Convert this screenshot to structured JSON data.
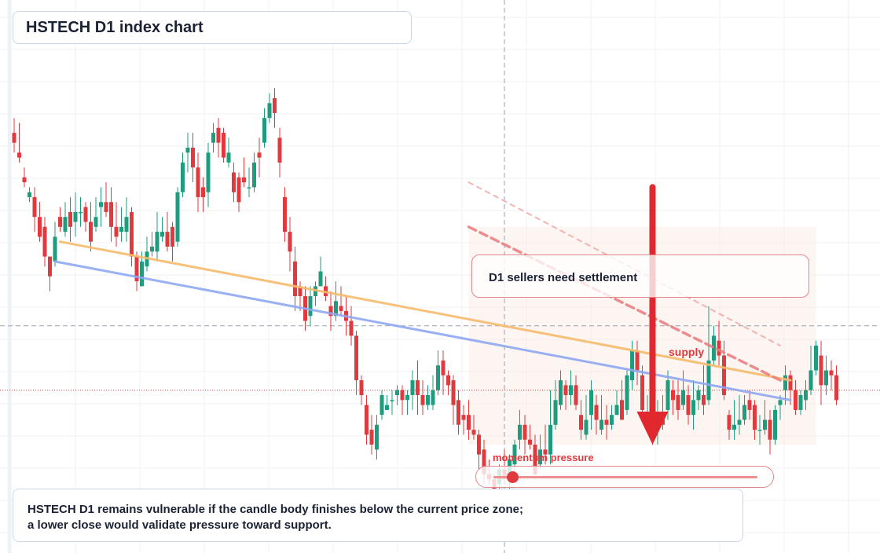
{
  "header": {
    "title": "HSTECH D1 index chart"
  },
  "callout": {
    "text": "D1 sellers need settlement"
  },
  "supply_label": "supply",
  "momentum": {
    "label": "momentum pressure",
    "level": 0.07
  },
  "note": {
    "text": "HSTECH D1 remains vulnerable if the candle body finishes below the current price zone; a lower close would validate pressure toward support."
  },
  "colors": {
    "bullish": "#1f9c7d",
    "bearish": "#e0393e",
    "support_line": "#8fa8f2",
    "resistance_line": "#f7bb6b",
    "bearish_arrow": "#e0282e",
    "price_line": "#e0393e",
    "grid": "#edf0f5",
    "crosshair": "#9aa2ae",
    "panel_border": "#c9d6ea",
    "supply_zone_fill": "#fbe9df"
  },
  "chart_data": {
    "type": "candlestick",
    "title": "HSTECH D1 index chart",
    "timeframe": "D1",
    "symbol": "HSTECH",
    "ylim": [
      0,
      100
    ],
    "xlabel": "",
    "ylabel": "",
    "grid": true,
    "candles": [
      [
        83,
        81,
        86,
        79
      ],
      [
        79,
        78,
        85,
        77
      ],
      [
        74,
        73,
        76,
        72
      ],
      [
        70,
        71,
        72,
        69
      ],
      [
        70,
        66,
        72,
        63
      ],
      [
        66,
        62,
        69,
        61
      ],
      [
        64,
        58,
        66,
        56
      ],
      [
        58,
        54,
        58,
        51
      ],
      [
        57,
        62,
        65,
        56
      ],
      [
        66,
        64,
        68,
        63
      ],
      [
        63,
        66,
        69,
        62
      ],
      [
        67,
        64,
        70,
        61
      ],
      [
        65,
        67,
        71,
        62
      ],
      [
        67,
        67,
        70,
        64
      ],
      [
        68,
        65,
        69,
        63
      ],
      [
        65,
        61,
        69,
        59
      ],
      [
        64,
        66,
        70,
        63
      ],
      [
        68,
        69,
        72,
        64
      ],
      [
        69,
        67,
        73,
        66
      ],
      [
        69,
        64,
        72,
        61
      ],
      [
        64,
        62,
        69,
        60
      ],
      [
        63,
        64,
        68,
        61
      ],
      [
        63,
        66,
        70,
        61
      ],
      [
        67,
        58,
        68,
        56
      ],
      [
        58,
        53,
        59,
        51
      ],
      [
        52,
        57,
        59,
        52
      ],
      [
        56,
        59,
        62,
        55
      ],
      [
        59,
        60,
        63,
        58
      ],
      [
        59,
        63,
        67,
        57
      ],
      [
        62,
        63,
        66,
        61
      ],
      [
        63,
        60,
        67,
        59
      ],
      [
        64,
        60,
        65,
        57
      ],
      [
        61,
        71,
        72,
        60
      ],
      [
        71,
        77,
        79,
        70
      ],
      [
        79,
        80,
        83,
        75
      ],
      [
        80,
        76,
        83,
        73
      ],
      [
        76,
        70,
        79,
        67
      ],
      [
        72,
        70,
        74,
        67
      ],
      [
        71,
        79,
        81,
        68
      ],
      [
        81,
        83,
        85,
        79
      ],
      [
        84,
        81,
        86,
        78
      ],
      [
        83,
        78,
        84,
        77
      ],
      [
        77,
        79,
        82,
        76
      ],
      [
        75,
        71,
        77,
        69
      ],
      [
        74,
        69,
        75,
        67
      ],
      [
        74,
        73,
        78,
        72
      ],
      [
        72,
        72,
        76,
        70
      ],
      [
        72,
        77,
        79,
        71
      ],
      [
        79,
        78,
        82,
        74
      ],
      [
        81,
        86,
        88,
        80
      ],
      [
        86,
        89,
        91,
        85
      ],
      [
        90,
        87,
        92,
        84
      ],
      [
        82,
        77,
        84,
        74
      ],
      [
        70,
        63,
        72,
        61
      ],
      [
        63,
        59,
        66,
        55
      ],
      [
        57,
        50,
        60,
        47
      ],
      [
        52,
        50,
        53,
        47
      ],
      [
        50,
        45,
        52,
        43
      ],
      [
        46,
        50,
        52,
        44
      ],
      [
        50,
        52,
        53,
        48
      ],
      [
        52,
        55,
        58,
        52
      ],
      [
        52,
        50,
        54,
        49
      ],
      [
        48,
        46,
        51,
        43
      ],
      [
        46,
        49,
        53,
        45
      ],
      [
        48,
        47,
        52,
        46
      ],
      [
        47,
        45,
        50,
        42
      ],
      [
        45,
        42,
        48,
        40
      ],
      [
        42,
        33,
        43,
        30
      ],
      [
        33,
        30,
        34,
        28
      ],
      [
        28,
        22,
        30,
        20
      ],
      [
        23,
        20,
        26,
        18
      ],
      [
        19,
        24,
        26,
        17
      ],
      [
        26,
        30,
        31,
        25
      ],
      [
        27,
        28,
        30,
        27
      ],
      [
        29,
        29,
        31,
        26
      ],
      [
        30,
        31,
        32,
        28
      ],
      [
        31,
        29,
        32,
        26
      ],
      [
        29,
        30,
        31,
        26
      ],
      [
        30,
        33,
        35,
        27
      ],
      [
        33,
        30,
        37,
        26
      ],
      [
        30,
        28,
        33,
        26
      ],
      [
        28,
        30,
        32,
        27
      ],
      [
        28,
        31,
        34,
        27
      ],
      [
        31,
        36,
        39,
        30
      ],
      [
        37,
        34,
        39,
        30
      ],
      [
        34,
        32,
        35,
        30
      ],
      [
        33,
        28,
        34,
        24
      ],
      [
        29,
        24,
        31,
        22
      ],
      [
        26,
        25,
        28,
        22
      ],
      [
        26,
        23,
        29,
        21
      ],
      [
        23,
        22,
        26,
        21
      ],
      [
        22,
        18,
        23,
        15
      ],
      [
        19,
        14,
        21,
        12
      ],
      [
        14,
        13,
        17,
        12
      ],
      [
        13,
        11,
        14,
        9
      ],
      [
        12,
        15,
        16,
        11
      ],
      [
        15,
        13,
        19,
        12
      ],
      [
        14,
        17,
        18,
        11
      ],
      [
        16,
        20,
        21,
        14
      ],
      [
        21,
        24,
        27,
        19
      ],
      [
        24,
        21,
        26,
        18
      ],
      [
        21,
        20,
        24,
        19
      ],
      [
        20,
        14,
        22,
        13
      ],
      [
        16,
        19,
        22,
        15
      ],
      [
        19,
        18,
        24,
        16
      ],
      [
        18,
        24,
        31,
        16
      ],
      [
        24,
        29,
        33,
        23
      ],
      [
        28,
        33,
        35,
        27
      ],
      [
        32,
        30,
        33,
        27
      ],
      [
        30,
        32,
        35,
        28
      ],
      [
        32,
        28,
        34,
        27
      ],
      [
        26,
        23,
        29,
        21
      ],
      [
        22,
        25,
        30,
        21
      ],
      [
        26,
        31,
        33,
        23
      ],
      [
        28,
        25,
        30,
        22
      ],
      [
        23,
        25,
        30,
        22
      ],
      [
        25,
        24,
        28,
        21
      ],
      [
        24,
        26,
        28,
        23
      ],
      [
        26,
        28,
        31,
        26
      ],
      [
        29,
        25,
        33,
        25
      ],
      [
        27,
        34,
        35,
        26
      ],
      [
        33,
        39,
        41,
        31
      ],
      [
        39,
        35,
        41,
        32
      ],
      [
        34,
        27,
        36,
        25
      ],
      [
        25,
        25,
        30,
        24
      ],
      [
        25,
        23,
        28,
        20
      ],
      [
        23,
        25,
        29,
        20
      ],
      [
        25,
        24,
        30,
        23
      ],
      [
        27,
        33,
        35,
        25
      ],
      [
        31,
        29,
        33,
        26
      ],
      [
        30,
        27,
        33,
        25
      ],
      [
        28,
        31,
        35,
        27
      ],
      [
        30,
        26,
        32,
        24
      ],
      [
        26,
        29,
        33,
        23
      ],
      [
        29,
        31,
        32,
        27
      ],
      [
        30,
        28,
        36,
        26
      ],
      [
        29,
        37,
        48,
        28
      ],
      [
        37,
        42,
        44,
        36
      ],
      [
        41,
        38,
        45,
        36
      ],
      [
        38,
        30,
        41,
        29
      ],
      [
        26,
        23,
        27,
        21
      ],
      [
        23,
        24,
        29,
        21
      ],
      [
        24,
        25,
        30,
        22
      ],
      [
        25,
        28,
        30,
        24
      ],
      [
        29,
        27,
        31,
        25
      ],
      [
        28,
        23,
        29,
        21
      ],
      [
        23,
        23,
        26,
        20
      ],
      [
        23,
        25,
        29,
        22
      ],
      [
        25,
        21,
        27,
        18
      ],
      [
        21,
        27,
        28,
        20
      ],
      [
        28,
        29,
        30,
        25
      ],
      [
        31,
        34,
        36,
        28
      ],
      [
        34,
        31,
        35,
        28
      ],
      [
        31,
        27,
        33,
        26
      ],
      [
        27,
        30,
        31,
        26
      ],
      [
        29,
        31,
        33,
        27
      ],
      [
        31,
        35,
        40,
        30
      ],
      [
        35,
        40,
        41,
        34
      ],
      [
        38,
        32,
        41,
        28
      ],
      [
        32,
        35,
        38,
        30
      ],
      [
        35,
        34,
        37,
        31
      ],
      [
        34,
        29,
        36,
        28
      ]
    ],
    "series": [
      {
        "kind": "trendline",
        "role": "resistance",
        "points": [
          [
            9,
            61
          ],
          [
            152,
            33
          ]
        ]
      },
      {
        "kind": "trendline",
        "role": "support",
        "points": [
          [
            8,
            57
          ],
          [
            152,
            29
          ]
        ]
      },
      {
        "kind": "trendline",
        "role": "descending channel upper",
        "style": "dashed",
        "points": [
          [
            89,
            73
          ],
          [
            150,
            40
          ]
        ]
      },
      {
        "kind": "trendline",
        "role": "descending channel lower",
        "style": "dashed",
        "points": [
          [
            89,
            64
          ],
          [
            150,
            33
          ]
        ]
      }
    ],
    "price_line": 31,
    "supply_zone": {
      "x": [
        89,
        157
      ],
      "y": [
        20,
        64
      ]
    },
    "bearish_arrow": {
      "x": 125,
      "y_from": 72,
      "y_to": 20
    },
    "crosshair": {
      "x": 96,
      "y": 44
    }
  }
}
